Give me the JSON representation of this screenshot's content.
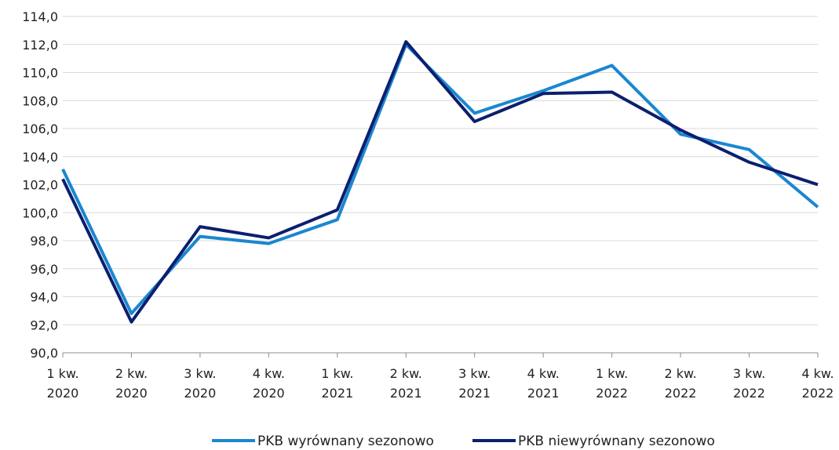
{
  "chart_data": {
    "type": "line",
    "title": "",
    "xlabel": "",
    "ylabel": "",
    "categories": [
      [
        "1 kw.",
        "2020"
      ],
      [
        "2 kw.",
        "2020"
      ],
      [
        "3 kw.",
        "2020"
      ],
      [
        "4 kw.",
        "2020"
      ],
      [
        "1 kw.",
        "2021"
      ],
      [
        "2 kw.",
        "2021"
      ],
      [
        "3 kw.",
        "2021"
      ],
      [
        "4 kw.",
        "2021"
      ],
      [
        "1 kw.",
        "2022"
      ],
      [
        "2 kw.",
        "2022"
      ],
      [
        "3 kw.",
        "2022"
      ],
      [
        "4 kw.",
        "2022"
      ]
    ],
    "ylim": [
      90,
      114
    ],
    "yticks": [
      "90,0",
      "92,0",
      "94,0",
      "96,0",
      "98,0",
      "100,0",
      "102,0",
      "104,0",
      "106,0",
      "108,0",
      "110,0",
      "112,0",
      "114,0"
    ],
    "grid": true,
    "legend_position": "bottom",
    "series": [
      {
        "name": "PKB wyrównany sezonowo",
        "color": "#1a87d0",
        "values": [
          103.1,
          92.8,
          98.3,
          97.8,
          99.5,
          112.0,
          107.1,
          108.7,
          110.5,
          105.6,
          104.5,
          100.4
        ]
      },
      {
        "name": "PKB niewyrównany sezonowo",
        "color": "#0c1f6e",
        "values": [
          102.4,
          92.2,
          99.0,
          98.2,
          100.2,
          112.2,
          106.5,
          108.5,
          108.6,
          105.9,
          103.6,
          102.0
        ]
      }
    ]
  }
}
